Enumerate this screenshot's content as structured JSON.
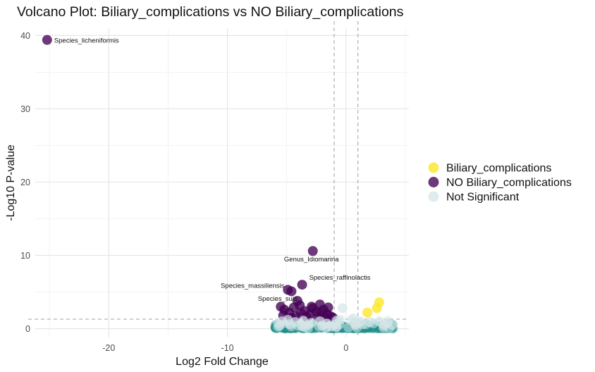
{
  "chart_data": {
    "type": "scatter",
    "title": "Volcano Plot: Biliary_complications vs NO Biliary_complications",
    "xlabel": "Log2 Fold Change",
    "ylabel": "-Log10 P-value",
    "xlim": [
      -26.2,
      5.3
    ],
    "ylim": [
      -1.2,
      41.0
    ],
    "xticks": [
      -20,
      -10,
      0
    ],
    "yticks": [
      0,
      10,
      20,
      30,
      40
    ],
    "thresholds": {
      "x": [
        -1,
        1
      ],
      "y": 1.3
    },
    "grid": true,
    "legend_position": "right",
    "series": [
      {
        "name": "Biliary_complications",
        "color": "#fde725",
        "points": [
          {
            "x": 1.8,
            "y": 2.2
          },
          {
            "x": 2.6,
            "y": 2.8
          },
          {
            "x": 2.8,
            "y": 3.6
          }
        ]
      },
      {
        "name": "NO Biliary_complications",
        "color": "#440154",
        "points": [
          {
            "x": -25.2,
            "y": 39.4,
            "label": "Species_licheniformis"
          },
          {
            "x": -2.8,
            "y": 10.6,
            "label": "Genus_Idiomarina"
          },
          {
            "x": -3.7,
            "y": 6.0,
            "label": "Species_raffinolactis"
          },
          {
            "x": -4.9,
            "y": 5.3,
            "label": "Species_massiliensis"
          },
          {
            "x": -4.6,
            "y": 5.1
          },
          {
            "x": -4.1,
            "y": 3.8,
            "label": "Species_suis"
          },
          {
            "x": -5.5,
            "y": 3.0
          },
          {
            "x": -5.2,
            "y": 2.6
          },
          {
            "x": -4.8,
            "y": 2.2
          },
          {
            "x": -4.4,
            "y": 2.9
          },
          {
            "x": -3.9,
            "y": 3.2
          },
          {
            "x": -3.5,
            "y": 2.4
          },
          {
            "x": -3.1,
            "y": 1.9
          },
          {
            "x": -2.8,
            "y": 2.8
          },
          {
            "x": -2.5,
            "y": 2.3
          },
          {
            "x": -2.2,
            "y": 3.3
          },
          {
            "x": -1.9,
            "y": 2.6
          },
          {
            "x": -1.6,
            "y": 2.0
          },
          {
            "x": -1.3,
            "y": 1.7
          },
          {
            "x": -3.3,
            "y": 1.6
          },
          {
            "x": -4.2,
            "y": 1.7
          },
          {
            "x": -5.3,
            "y": 1.8
          },
          {
            "x": -2.4,
            "y": 1.6
          },
          {
            "x": -1.5,
            "y": 2.9
          },
          {
            "x": -2.9,
            "y": 3.0
          },
          {
            "x": -3.8,
            "y": 2.1
          },
          {
            "x": -4.6,
            "y": 1.5
          },
          {
            "x": -1.1,
            "y": 1.5
          },
          {
            "x": -1.8,
            "y": 1.5
          },
          {
            "x": -2.1,
            "y": 2.2
          }
        ]
      },
      {
        "name": "Not Significant",
        "color": "#21908c",
        "points": [
          {
            "x": -5.4,
            "y": 1.0
          },
          {
            "x": -4.9,
            "y": 1.2
          },
          {
            "x": -4.3,
            "y": 0.9
          },
          {
            "x": -3.6,
            "y": 1.1
          },
          {
            "x": -2.9,
            "y": 0.8
          },
          {
            "x": -2.2,
            "y": 1.0
          },
          {
            "x": -1.6,
            "y": 0.7
          },
          {
            "x": -0.8,
            "y": 1.1
          },
          {
            "x": -0.3,
            "y": 2.8
          },
          {
            "x": -0.5,
            "y": 1.2
          },
          {
            "x": 0.6,
            "y": 1.4
          },
          {
            "x": 1.2,
            "y": 1.0
          },
          {
            "x": 2.0,
            "y": 0.9
          },
          {
            "x": 2.8,
            "y": 1.0
          },
          {
            "x": 3.5,
            "y": 0.8
          },
          {
            "x": 3.9,
            "y": 0.5
          },
          {
            "x": 3.2,
            "y": 0.6
          },
          {
            "x": -3.2,
            "y": 0.5
          },
          {
            "x": -4.7,
            "y": 0.6
          },
          {
            "x": -5.6,
            "y": 0.4
          },
          {
            "x": -2.0,
            "y": 0.4
          },
          {
            "x": -1.2,
            "y": 0.3
          },
          {
            "x": -0.9,
            "y": 0.6
          },
          {
            "x": 0.8,
            "y": 0.5
          }
        ]
      }
    ]
  }
}
